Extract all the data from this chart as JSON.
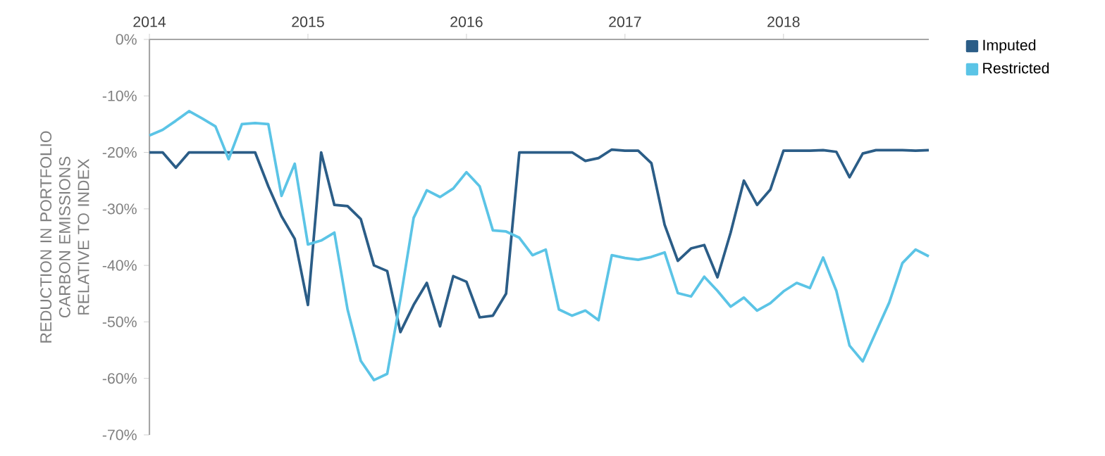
{
  "chart_data": {
    "type": "line",
    "ylabel": "REDUCTION IN PORTFOLIO CARBON EMISSIONS RELATIVE TO INDEX",
    "x": [
      "2014-01",
      "2014-02",
      "2014-03",
      "2014-04",
      "2014-05",
      "2014-06",
      "2014-07",
      "2014-08",
      "2014-09",
      "2014-10",
      "2014-11",
      "2014-12",
      "2015-01",
      "2015-02",
      "2015-03",
      "2015-04",
      "2015-05",
      "2015-06",
      "2015-07",
      "2015-08",
      "2015-09",
      "2015-10",
      "2015-11",
      "2015-12",
      "2016-01",
      "2016-02",
      "2016-03",
      "2016-04",
      "2016-05",
      "2016-06",
      "2016-07",
      "2016-08",
      "2016-09",
      "2016-10",
      "2016-11",
      "2016-12",
      "2017-01",
      "2017-02",
      "2017-03",
      "2017-04",
      "2017-05",
      "2017-06",
      "2017-07",
      "2017-08",
      "2017-09",
      "2017-10",
      "2017-11",
      "2017-12",
      "2018-01",
      "2018-02",
      "2018-03",
      "2018-04",
      "2018-05",
      "2018-06",
      "2018-07",
      "2018-08",
      "2018-09",
      "2018-10",
      "2018-11",
      "2018-12"
    ],
    "series": [
      {
        "name": "Imputed",
        "color": "#2b5d87",
        "values": [
          -20,
          -20,
          -22.7,
          -20,
          -20,
          -20,
          -20,
          -20,
          -20,
          -26,
          -31.3,
          -35.3,
          -47,
          -20,
          -29.3,
          -29.5,
          -31.8,
          -40,
          -41,
          -51.8,
          -47,
          -43.1,
          -50.8,
          -41.9,
          -42.9,
          -49.2,
          -48.9,
          -45,
          -20,
          -20,
          -20,
          -20,
          -20,
          -21.5,
          -21,
          -19.5,
          -19.7,
          -19.7,
          -21.9,
          -32.8,
          -39.2,
          -37,
          -36.4,
          -42.1,
          -34.2,
          -25,
          -29.3,
          -26.6,
          -19.7,
          -19.7,
          -19.7,
          -19.6,
          -19.9,
          -24.4,
          -20.2,
          -19.6,
          -19.6,
          -19.6,
          -19.7,
          -19.6
        ]
      },
      {
        "name": "Restricted",
        "color": "#5bc4e6",
        "values": [
          -17,
          -16,
          -14.4,
          -12.7,
          -14,
          -15.4,
          -21.2,
          -15,
          -14.8,
          -15,
          -27.7,
          -22,
          -36.3,
          -35.6,
          -34.2,
          -47.8,
          -56.9,
          -60.3,
          -59.2,
          -46,
          -31.6,
          -26.7,
          -27.9,
          -26.4,
          -23.5,
          -26,
          -33.8,
          -34,
          -35.1,
          -38.2,
          -37.2,
          -47.8,
          -48.9,
          -48,
          -49.7,
          -38.2,
          -38.7,
          -39,
          -38.5,
          -37.7,
          -44.9,
          -45.5,
          -42,
          -44.5,
          -47.3,
          -45.7,
          -48,
          -46.7,
          -44.6,
          -43.1,
          -44,
          -38.6,
          -44.5,
          -54.2,
          -57,
          -51.8,
          -46.6,
          -39.6,
          -37.2,
          -38.4
        ]
      }
    ],
    "xlim": [
      "2014-01",
      "2018-12"
    ],
    "xticks": [
      "2014",
      "2015",
      "2016",
      "2017",
      "2018"
    ],
    "ylim": [
      -70,
      0
    ],
    "yticks": [
      {
        "value": 0,
        "label": "0%"
      },
      {
        "value": -10,
        "label": "-10%"
      },
      {
        "value": -20,
        "label": "-20%"
      },
      {
        "value": -30,
        "label": "-30%"
      },
      {
        "value": -40,
        "label": "-40%"
      },
      {
        "value": -50,
        "label": "-50%"
      },
      {
        "value": -60,
        "label": "-60%"
      },
      {
        "value": -70,
        "label": "-70%"
      }
    ],
    "grid": false,
    "legend": "top right",
    "marker": "none",
    "line_style": "solid"
  }
}
